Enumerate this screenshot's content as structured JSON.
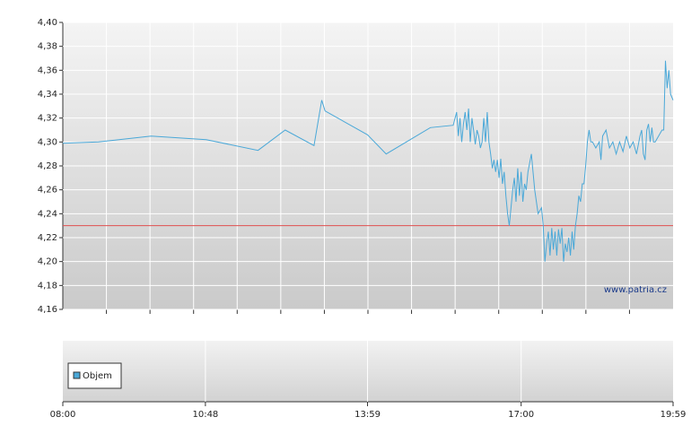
{
  "chart_data": [
    {
      "type": "line",
      "watermark": "www.patria.cz",
      "x": [
        "08:00",
        "08:42",
        "09:44",
        "10:49",
        "11:50",
        "12:22",
        "12:56",
        "13:05",
        "13:09",
        "13:59",
        "14:21",
        "15:13",
        "15:40",
        "15:44",
        "15:46",
        "15:48",
        "15:50",
        "15:52",
        "15:54",
        "15:56",
        "15:58",
        "16:00",
        "16:02",
        "16:04",
        "16:06",
        "16:08",
        "16:10",
        "16:12",
        "16:14",
        "16:16",
        "16:18",
        "16:20",
        "16:22",
        "16:24",
        "16:26",
        "16:28",
        "16:30",
        "16:32",
        "16:34",
        "16:36",
        "16:38",
        "16:40",
        "16:42",
        "16:44",
        "16:46",
        "16:48",
        "16:50",
        "16:52",
        "16:54",
        "16:56",
        "16:58",
        "17:00",
        "17:02",
        "17:04",
        "17:06",
        "17:08",
        "17:12",
        "17:16",
        "17:20",
        "17:24",
        "17:26",
        "17:28",
        "17:30",
        "17:32",
        "17:34",
        "17:36",
        "17:38",
        "17:40",
        "17:42",
        "17:44",
        "17:46",
        "17:48",
        "17:50",
        "17:52",
        "17:54",
        "17:56",
        "17:58",
        "18:00",
        "18:02",
        "18:04",
        "18:06",
        "18:08",
        "18:10",
        "18:12",
        "18:14",
        "18:16",
        "18:18",
        "18:20",
        "18:22",
        "18:24",
        "18:28",
        "18:32",
        "18:34",
        "18:36",
        "18:40",
        "18:44",
        "18:48",
        "18:52",
        "18:56",
        "19:00",
        "19:04",
        "19:08",
        "19:12",
        "19:16",
        "19:20",
        "19:22",
        "19:24",
        "19:26",
        "19:28",
        "19:30",
        "19:32",
        "19:34",
        "19:36",
        "19:38",
        "19:46",
        "19:48",
        "19:50",
        "19:52",
        "19:54",
        "19:56",
        "19:59"
      ],
      "series": [
        {
          "color": "#4aa8d8",
          "values": [
            4.299,
            4.3,
            4.305,
            4.302,
            4.293,
            4.31,
            4.297,
            4.335,
            4.326,
            4.306,
            4.29,
            4.312,
            4.314,
            4.325,
            4.305,
            4.32,
            4.3,
            4.315,
            4.325,
            4.31,
            4.328,
            4.3,
            4.32,
            4.31,
            4.298,
            4.31,
            4.305,
            4.295,
            4.3,
            4.32,
            4.3,
            4.325,
            4.3,
            4.29,
            4.278,
            4.285,
            4.275,
            4.285,
            4.27,
            4.286,
            4.265,
            4.275,
            4.255,
            4.24,
            4.23,
            4.245,
            4.26,
            4.27,
            4.25,
            4.278,
            4.255,
            4.275,
            4.25,
            4.265,
            4.26,
            4.275,
            4.29,
            4.26,
            4.24,
            4.245,
            4.23,
            4.2,
            4.215,
            4.225,
            4.205,
            4.228,
            4.21,
            4.225,
            4.205,
            4.227,
            4.215,
            4.228,
            4.2,
            4.215,
            4.208,
            4.22,
            4.205,
            4.225,
            4.21,
            4.23,
            4.24,
            4.255,
            4.25,
            4.265,
            4.265,
            4.28,
            4.3,
            4.31,
            4.3,
            4.3,
            4.295,
            4.3,
            4.285,
            4.305,
            4.31,
            4.295,
            4.3,
            4.29,
            4.3,
            4.292,
            4.305,
            4.295,
            4.3,
            4.29,
            4.305,
            4.31,
            4.29,
            4.285,
            4.31,
            4.315,
            4.3,
            4.312,
            4.3,
            4.3,
            4.31,
            4.31,
            4.368,
            4.345,
            4.36,
            4.34,
            4.335
          ]
        }
      ],
      "reference_line": {
        "value": 4.23,
        "color": "#e05050"
      },
      "xlim": [
        "08:00",
        "19:59"
      ],
      "ylim": [
        4.16,
        4.4
      ],
      "yticks": [
        {
          "value": 4.16,
          "label": "4,16"
        },
        {
          "value": 4.18,
          "label": "4,18"
        },
        {
          "value": 4.2,
          "label": "4,20"
        },
        {
          "value": 4.22,
          "label": "4,22"
        },
        {
          "value": 4.24,
          "label": "4,24"
        },
        {
          "value": 4.26,
          "label": "4,26"
        },
        {
          "value": 4.28,
          "label": "4,28"
        },
        {
          "value": 4.3,
          "label": "4,30"
        },
        {
          "value": 4.32,
          "label": "4,32"
        },
        {
          "value": 4.34,
          "label": "4,34"
        },
        {
          "value": 4.36,
          "label": "4,36"
        },
        {
          "value": 4.38,
          "label": "4,38"
        },
        {
          "value": 4.4,
          "label": "4,40"
        }
      ],
      "grid": true
    },
    {
      "type": "bar",
      "x": [],
      "series": [
        {
          "name": "Objem",
          "color": "#4aa8d8",
          "values": []
        }
      ],
      "xlim": [
        "08:00",
        "19:59"
      ],
      "xticks": [
        "08:00",
        "10:48",
        "13:59",
        "17:00",
        "19:59"
      ],
      "grid": true
    }
  ]
}
